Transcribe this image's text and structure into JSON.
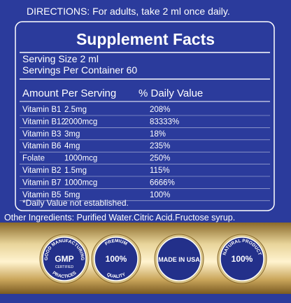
{
  "directions": "DIRECTIONS: For adults, take 2 ml once daily.",
  "facts": {
    "title": "Supplement Facts",
    "serving_size": "Serving Size 2 ml",
    "servings_per_container": "Servings Per Container 60",
    "header": {
      "amount": "Amount Per Serving",
      "percent": "% Daily Value"
    },
    "rows": [
      [
        "Vitamin B1",
        "2.5mg",
        "208%"
      ],
      [
        "Vitamin B12",
        "2000mcg",
        "83333%"
      ],
      [
        "Vitamin B3",
        "3mg",
        "18%"
      ],
      [
        "Vitamin B6",
        "4mg",
        "235%"
      ],
      [
        "Folate",
        "1000mcg",
        "250%"
      ],
      [
        "Vitamin B2",
        "1.5mg",
        "115%"
      ],
      [
        "Vitamin B7",
        "1000mcg",
        "6666%"
      ],
      [
        "Vitamin B5",
        "5mg",
        "100%"
      ]
    ],
    "note": "*Daily Value not established."
  },
  "other_ingredients": "Other Ingredients: Purified Water.Citric Acid.Fructose syrup.",
  "badges": [
    {
      "top": "GOOD MANUFACTURING",
      "center": "GMP",
      "sub": "CERTIFIED",
      "bottom": "PRACTICES"
    },
    {
      "top": "PREMIUM",
      "center": "100%",
      "bottom": "QUALITY"
    },
    {
      "center": "MADE IN USA"
    },
    {
      "top": "NATURAL PRODUCT",
      "center": "100%"
    }
  ]
}
